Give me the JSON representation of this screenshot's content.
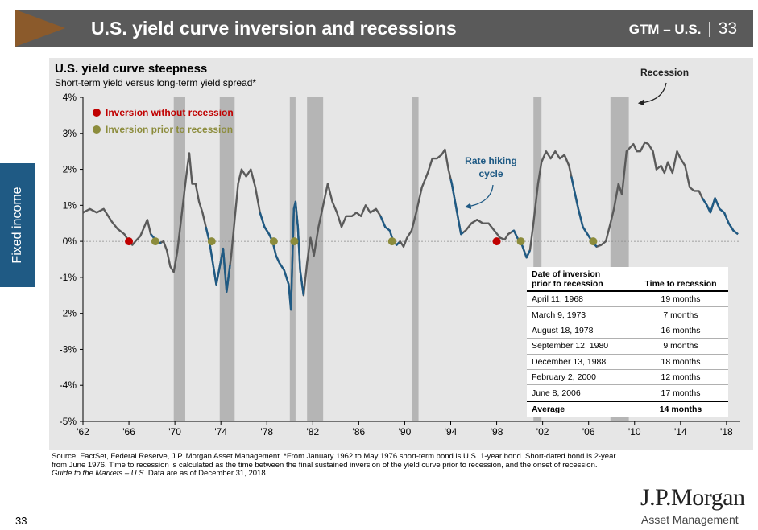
{
  "header": {
    "title": "U.S. yield curve inversion and recessions",
    "section": "GTM – U.S.",
    "separator": "|",
    "page": "33"
  },
  "side_tab": {
    "label": "Fixed income"
  },
  "chart_data": {
    "type": "line",
    "title": "U.S. yield curve steepness",
    "subtitle": "Short-term yield versus long-term yield spread*",
    "xlabel": "",
    "ylabel": "",
    "xlim": [
      1962,
      2019.2
    ],
    "ylim": [
      -5,
      4
    ],
    "x_ticks": [
      {
        "value": 1962,
        "label": "'62"
      },
      {
        "value": 1966,
        "label": "'66"
      },
      {
        "value": 1970,
        "label": "'70"
      },
      {
        "value": 1974,
        "label": "'74"
      },
      {
        "value": 1978,
        "label": "'78"
      },
      {
        "value": 1982,
        "label": "'82"
      },
      {
        "value": 1986,
        "label": "'86"
      },
      {
        "value": 1990,
        "label": "'90"
      },
      {
        "value": 1994,
        "label": "'94"
      },
      {
        "value": 1998,
        "label": "'98"
      },
      {
        "value": 2002,
        "label": "'02"
      },
      {
        "value": 2006,
        "label": "'06"
      },
      {
        "value": 2010,
        "label": "'10"
      },
      {
        "value": 2014,
        "label": "'14"
      },
      {
        "value": 2018,
        "label": "'18"
      }
    ],
    "y_ticks": [
      {
        "value": 4,
        "label": "4%"
      },
      {
        "value": 3,
        "label": "3%"
      },
      {
        "value": 2,
        "label": "2%"
      },
      {
        "value": 1,
        "label": "1%"
      },
      {
        "value": 0,
        "label": "0%"
      },
      {
        "value": -1,
        "label": "-1%"
      },
      {
        "value": -2,
        "label": "-2%"
      },
      {
        "value": -3,
        "label": "-3%"
      },
      {
        "value": -4,
        "label": "-4%"
      },
      {
        "value": -5,
        "label": "-5%"
      }
    ],
    "recessions": [
      [
        1969.9,
        1970.9
      ],
      [
        1973.9,
        1975.2
      ],
      [
        1980.0,
        1980.5
      ],
      [
        1981.5,
        1982.9
      ],
      [
        1990.6,
        1991.2
      ],
      [
        2001.2,
        2001.9
      ],
      [
        2007.9,
        2009.5
      ]
    ],
    "series_points": [
      [
        1962.0,
        0.8
      ],
      [
        1962.6,
        0.9
      ],
      [
        1963.2,
        0.8
      ],
      [
        1963.8,
        0.9
      ],
      [
        1964.5,
        0.55
      ],
      [
        1965.0,
        0.35
      ],
      [
        1965.6,
        0.2
      ],
      [
        1966.0,
        0.0
      ],
      [
        1966.3,
        -0.1
      ],
      [
        1966.7,
        0.05
      ],
      [
        1967.0,
        0.15
      ],
      [
        1967.4,
        0.45
      ],
      [
        1967.6,
        0.6
      ],
      [
        1967.9,
        0.2
      ],
      [
        1968.3,
        0.05
      ],
      [
        1968.7,
        -0.05
      ],
      [
        1969.0,
        0.0
      ],
      [
        1969.3,
        -0.25
      ],
      [
        1969.6,
        -0.7
      ],
      [
        1969.9,
        -0.85
      ],
      [
        1970.2,
        -0.3
      ],
      [
        1970.5,
        0.5
      ],
      [
        1970.8,
        1.3
      ],
      [
        1971.1,
        2.1
      ],
      [
        1971.25,
        2.45
      ],
      [
        1971.5,
        1.6
      ],
      [
        1971.8,
        1.6
      ],
      [
        1972.1,
        1.1
      ],
      [
        1972.4,
        0.8
      ],
      [
        1972.7,
        0.4
      ],
      [
        1973.0,
        0.0
      ],
      [
        1973.3,
        -0.6
      ],
      [
        1973.6,
        -1.2
      ],
      [
        1973.9,
        -0.7
      ],
      [
        1974.2,
        -0.2
      ],
      [
        1974.5,
        -1.4
      ],
      [
        1974.9,
        -0.4
      ],
      [
        1975.2,
        0.6
      ],
      [
        1975.5,
        1.6
      ],
      [
        1975.8,
        2.0
      ],
      [
        1976.2,
        1.8
      ],
      [
        1976.6,
        2.0
      ],
      [
        1977.0,
        1.5
      ],
      [
        1977.4,
        0.8
      ],
      [
        1977.8,
        0.4
      ],
      [
        1978.2,
        0.2
      ],
      [
        1978.5,
        0.0
      ],
      [
        1978.8,
        -0.4
      ],
      [
        1979.1,
        -0.6
      ],
      [
        1979.5,
        -0.8
      ],
      [
        1979.9,
        -1.2
      ],
      [
        1980.1,
        -1.9
      ],
      [
        1980.35,
        0.9
      ],
      [
        1980.5,
        1.1
      ],
      [
        1980.7,
        0.4
      ],
      [
        1980.9,
        -0.8
      ],
      [
        1981.2,
        -1.5
      ],
      [
        1981.5,
        -0.6
      ],
      [
        1981.8,
        0.1
      ],
      [
        1982.1,
        -0.4
      ],
      [
        1982.5,
        0.4
      ],
      [
        1982.9,
        1.0
      ],
      [
        1983.3,
        1.6
      ],
      [
        1983.7,
        1.1
      ],
      [
        1984.1,
        0.8
      ],
      [
        1984.5,
        0.4
      ],
      [
        1984.9,
        0.7
      ],
      [
        1985.4,
        0.7
      ],
      [
        1985.8,
        0.8
      ],
      [
        1986.2,
        0.7
      ],
      [
        1986.6,
        1.0
      ],
      [
        1987.0,
        0.8
      ],
      [
        1987.5,
        0.9
      ],
      [
        1987.9,
        0.7
      ],
      [
        1988.3,
        0.4
      ],
      [
        1988.7,
        0.3
      ],
      [
        1989.0,
        0.0
      ],
      [
        1989.3,
        -0.1
      ],
      [
        1989.6,
        0.0
      ],
      [
        1989.9,
        -0.15
      ],
      [
        1990.2,
        0.1
      ],
      [
        1990.6,
        0.3
      ],
      [
        1991.0,
        0.8
      ],
      [
        1991.5,
        1.5
      ],
      [
        1992.0,
        1.9
      ],
      [
        1992.4,
        2.3
      ],
      [
        1992.8,
        2.3
      ],
      [
        1993.2,
        2.4
      ],
      [
        1993.5,
        2.55
      ],
      [
        1993.8,
        2.0
      ],
      [
        1994.1,
        1.6
      ],
      [
        1994.5,
        0.9
      ],
      [
        1994.9,
        0.2
      ],
      [
        1995.3,
        0.3
      ],
      [
        1995.8,
        0.5
      ],
      [
        1996.3,
        0.6
      ],
      [
        1996.8,
        0.5
      ],
      [
        1997.3,
        0.5
      ],
      [
        1997.8,
        0.3
      ],
      [
        1998.3,
        0.1
      ],
      [
        1998.7,
        0.05
      ],
      [
        1999.0,
        0.2
      ],
      [
        1999.5,
        0.3
      ],
      [
        1999.8,
        0.1
      ],
      [
        2000.2,
        -0.1
      ],
      [
        2000.6,
        -0.45
      ],
      [
        2000.9,
        -0.25
      ],
      [
        2001.2,
        0.5
      ],
      [
        2001.6,
        1.6
      ],
      [
        2001.9,
        2.2
      ],
      [
        2002.3,
        2.5
      ],
      [
        2002.7,
        2.3
      ],
      [
        2003.1,
        2.5
      ],
      [
        2003.5,
        2.3
      ],
      [
        2003.9,
        2.4
      ],
      [
        2004.3,
        2.1
      ],
      [
        2004.7,
        1.5
      ],
      [
        2005.1,
        0.9
      ],
      [
        2005.5,
        0.4
      ],
      [
        2005.9,
        0.2
      ],
      [
        2006.3,
        0.0
      ],
      [
        2006.7,
        -0.15
      ],
      [
        2007.1,
        -0.1
      ],
      [
        2007.5,
        0.0
      ],
      [
        2007.9,
        0.5
      ],
      [
        2008.2,
        0.9
      ],
      [
        2008.6,
        1.6
      ],
      [
        2008.9,
        1.3
      ],
      [
        2009.3,
        2.5
      ],
      [
        2009.6,
        2.6
      ],
      [
        2009.9,
        2.7
      ],
      [
        2010.2,
        2.5
      ],
      [
        2010.5,
        2.5
      ],
      [
        2010.9,
        2.75
      ],
      [
        2011.2,
        2.7
      ],
      [
        2011.6,
        2.5
      ],
      [
        2011.9,
        2.0
      ],
      [
        2012.3,
        2.1
      ],
      [
        2012.6,
        1.9
      ],
      [
        2012.9,
        2.2
      ],
      [
        2013.3,
        1.9
      ],
      [
        2013.7,
        2.5
      ],
      [
        2014.0,
        2.3
      ],
      [
        2014.4,
        2.1
      ],
      [
        2014.8,
        1.5
      ],
      [
        2015.2,
        1.4
      ],
      [
        2015.6,
        1.4
      ],
      [
        2015.9,
        1.2
      ],
      [
        2016.3,
        1.0
      ],
      [
        2016.6,
        0.8
      ],
      [
        2017.0,
        1.2
      ],
      [
        2017.4,
        0.9
      ],
      [
        2017.8,
        0.8
      ],
      [
        2018.2,
        0.5
      ],
      [
        2018.6,
        0.3
      ],
      [
        2019.0,
        0.2
      ]
    ],
    "hiking_cycles": [
      [
        1967.9,
        1968.8
      ],
      [
        1972.7,
        1974.8
      ],
      [
        1977.4,
        1981.2
      ],
      [
        1987.9,
        1989.5
      ],
      [
        1994.0,
        1995.1
      ],
      [
        1999.3,
        2000.9
      ],
      [
        2004.5,
        2006.7
      ],
      [
        2015.9,
        2019.0
      ]
    ],
    "markers_without_recession": [
      [
        1966.0,
        0.0
      ],
      [
        1998.0,
        0.0
      ]
    ],
    "markers_prior_to_recession": [
      [
        1968.3,
        0.0
      ],
      [
        1973.2,
        0.0
      ],
      [
        1978.6,
        0.0
      ],
      [
        1980.4,
        0.0
      ],
      [
        1988.9,
        0.0
      ],
      [
        2000.1,
        0.0
      ],
      [
        2006.4,
        0.0
      ]
    ],
    "legend": [
      {
        "label": "Inversion without recession",
        "color": "#c00000"
      },
      {
        "label": "Inversion prior to recession",
        "color": "#8c8c3c"
      }
    ],
    "annotations": {
      "recession": "Recession",
      "hiking_line1": "Rate hiking",
      "hiking_line2": "cycle"
    },
    "colors": {
      "line": "#5a5a5a",
      "hiking": "#1f5a84",
      "recession": "#b5b5b5",
      "red": "#c00000",
      "olive": "#8c8c3c"
    }
  },
  "table": {
    "header_col1_line1": "Date of inversion",
    "header_col1_line2": "prior to recession",
    "header_col2": "Time to recession",
    "rows": [
      {
        "date": "April 11, 1968",
        "time": "19 months"
      },
      {
        "date": "March 9, 1973",
        "time": "7 months"
      },
      {
        "date": "August 18, 1978",
        "time": "16 months"
      },
      {
        "date": "September 12, 1980",
        "time": "9 months"
      },
      {
        "date": "December 13, 1988",
        "time": "18 months"
      },
      {
        "date": "February 2, 2000",
        "time": "12 months"
      },
      {
        "date": "June 8, 2006",
        "time": "17 months"
      }
    ],
    "avg_label": "Average",
    "avg_value": "14 months"
  },
  "footer": {
    "source": "Source: FactSet, Federal Reserve, J.P. Morgan Asset Management. *From January 1962 to May 1976 short-term bond is U.S. 1-year bond. Short-dated bond is 2-year from June 1976. Time to recession is calculated as the time between the final sustained inversion of the yield curve prior to recession, and the onset of recession.",
    "guide_italic": "Guide to the Markets – U.S.",
    "guide_rest": " Data are as of December 31, 2018.",
    "page_number": "33"
  },
  "logo": {
    "line1": "J.P.Morgan",
    "line2": "Asset Management"
  }
}
